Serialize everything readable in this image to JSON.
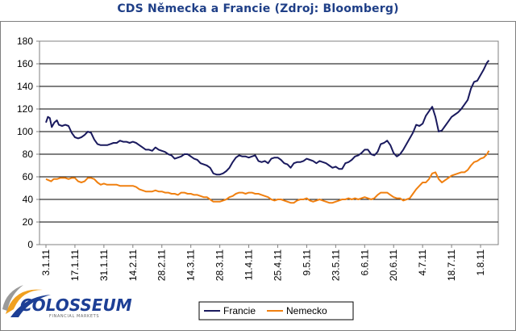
{
  "chart_data": {
    "type": "line",
    "title": "CDS Německa a Francie (Zdroj: Bloomberg)",
    "xlabel": "",
    "ylabel": "",
    "ylim": [
      0,
      180
    ],
    "yticks": [
      0,
      20,
      40,
      60,
      80,
      100,
      120,
      140,
      160,
      180
    ],
    "xtick_labels": [
      "3.1.11",
      "17.1.11",
      "31.1.11",
      "14.2.11",
      "28.2.11",
      "14.3.11",
      "28.3.11",
      "11.4.11",
      "25.4.11",
      "9.5.11",
      "23.5.11",
      "6.6.11",
      "20.6.11",
      "4.7.11",
      "18.7.11",
      "1.8.11"
    ],
    "grid": "horizontal",
    "legend_position": "bottom",
    "series": [
      {
        "name": "Francie",
        "color": "#1a1a5e",
        "points": [
          [
            0,
            108
          ],
          [
            0.3,
            113
          ],
          [
            0.6,
            112
          ],
          [
            0.9,
            104
          ],
          [
            1.3,
            108
          ],
          [
            1.7,
            110
          ],
          [
            2.0,
            106
          ],
          [
            2.5,
            105
          ],
          [
            3.0,
            106
          ],
          [
            3.5,
            105
          ],
          [
            4.0,
            99
          ],
          [
            4.5,
            95
          ],
          [
            5.0,
            94
          ],
          [
            5.5,
            95
          ],
          [
            6.0,
            97
          ],
          [
            6.5,
            100
          ],
          [
            7.0,
            99
          ],
          [
            7.5,
            93
          ],
          [
            8.0,
            89
          ],
          [
            8.5,
            88
          ],
          [
            9.0,
            88
          ],
          [
            9.5,
            88
          ],
          [
            10.0,
            89
          ],
          [
            10.5,
            90
          ],
          [
            11.0,
            90
          ],
          [
            11.5,
            92
          ],
          [
            12.0,
            91
          ],
          [
            12.5,
            91
          ],
          [
            13.0,
            90
          ],
          [
            13.5,
            91
          ],
          [
            14.0,
            90
          ],
          [
            14.5,
            88
          ],
          [
            15.0,
            86
          ],
          [
            15.5,
            84
          ],
          [
            16.0,
            84
          ],
          [
            16.5,
            83
          ],
          [
            17.0,
            86
          ],
          [
            17.5,
            84
          ],
          [
            18.0,
            83
          ],
          [
            18.5,
            82
          ],
          [
            19.0,
            80
          ],
          [
            19.5,
            79
          ],
          [
            20.0,
            76
          ],
          [
            20.5,
            77
          ],
          [
            21.0,
            78
          ],
          [
            21.5,
            80
          ],
          [
            22.0,
            80
          ],
          [
            22.5,
            78
          ],
          [
            23.0,
            76
          ],
          [
            23.5,
            75
          ],
          [
            24.0,
            72
          ],
          [
            24.5,
            71
          ],
          [
            25.0,
            70
          ],
          [
            25.5,
            68
          ],
          [
            26.0,
            63
          ],
          [
            26.5,
            62
          ],
          [
            27.0,
            62
          ],
          [
            27.5,
            63
          ],
          [
            28.0,
            65
          ],
          [
            28.5,
            68
          ],
          [
            29.0,
            73
          ],
          [
            29.5,
            77
          ],
          [
            30.0,
            79
          ],
          [
            30.5,
            78
          ],
          [
            31.0,
            78
          ],
          [
            31.5,
            77
          ],
          [
            32.0,
            78
          ],
          [
            32.5,
            79
          ],
          [
            33.0,
            74
          ],
          [
            33.5,
            73
          ],
          [
            34.0,
            74
          ],
          [
            34.5,
            72
          ],
          [
            35.0,
            76
          ],
          [
            35.5,
            77
          ],
          [
            36.0,
            77
          ],
          [
            36.5,
            75
          ],
          [
            37.0,
            72
          ],
          [
            37.5,
            71
          ],
          [
            38.0,
            68
          ],
          [
            38.5,
            72
          ],
          [
            39.0,
            73
          ],
          [
            39.5,
            73
          ],
          [
            40.0,
            74
          ],
          [
            40.5,
            76
          ],
          [
            41.0,
            75
          ],
          [
            41.5,
            74
          ],
          [
            42.0,
            72
          ],
          [
            42.5,
            74
          ],
          [
            43.0,
            73
          ],
          [
            43.5,
            72
          ],
          [
            44.0,
            70
          ],
          [
            44.5,
            68
          ],
          [
            45.0,
            69
          ],
          [
            45.5,
            67
          ],
          [
            46.0,
            67
          ],
          [
            46.5,
            72
          ],
          [
            47.0,
            73
          ],
          [
            47.5,
            75
          ],
          [
            48.0,
            78
          ],
          [
            48.5,
            79
          ],
          [
            49.0,
            81
          ],
          [
            49.5,
            84
          ],
          [
            50.0,
            84
          ],
          [
            50.5,
            80
          ],
          [
            51.0,
            79
          ],
          [
            51.5,
            82
          ],
          [
            52.0,
            89
          ],
          [
            52.5,
            90
          ],
          [
            53.0,
            92
          ],
          [
            53.5,
            88
          ],
          [
            54.0,
            81
          ],
          [
            54.5,
            78
          ],
          [
            55.0,
            80
          ],
          [
            55.5,
            84
          ],
          [
            56.0,
            89
          ],
          [
            56.5,
            94
          ],
          [
            57.0,
            99
          ],
          [
            57.5,
            106
          ],
          [
            58.0,
            105
          ],
          [
            58.5,
            107
          ],
          [
            59.0,
            114
          ],
          [
            59.5,
            118
          ],
          [
            60.0,
            122
          ],
          [
            60.5,
            113
          ],
          [
            61.0,
            100
          ],
          [
            61.5,
            101
          ],
          [
            62.0,
            105
          ],
          [
            62.5,
            109
          ],
          [
            63.0,
            113
          ],
          [
            63.5,
            115
          ],
          [
            64.0,
            117
          ],
          [
            64.5,
            120
          ],
          [
            65.0,
            124
          ],
          [
            65.5,
            128
          ],
          [
            66.0,
            138
          ],
          [
            66.5,
            144
          ],
          [
            67.0,
            145
          ],
          [
            67.5,
            150
          ],
          [
            68.0,
            155
          ],
          [
            68.5,
            161
          ],
          [
            68.8,
            163
          ]
        ]
      },
      {
        "name": "Nemecko",
        "color": "#f08010",
        "points": [
          [
            0,
            58
          ],
          [
            0.4,
            57
          ],
          [
            0.8,
            56
          ],
          [
            1.2,
            58
          ],
          [
            1.7,
            58
          ],
          [
            2.2,
            59
          ],
          [
            3.0,
            59
          ],
          [
            3.5,
            58
          ],
          [
            4.0,
            59
          ],
          [
            4.5,
            59
          ],
          [
            5.0,
            56
          ],
          [
            5.5,
            55
          ],
          [
            6.0,
            56
          ],
          [
            6.5,
            59
          ],
          [
            7.0,
            59
          ],
          [
            7.5,
            58
          ],
          [
            8.0,
            55
          ],
          [
            8.5,
            53
          ],
          [
            9.0,
            54
          ],
          [
            9.5,
            53
          ],
          [
            10.0,
            53
          ],
          [
            10.5,
            53
          ],
          [
            11.0,
            53
          ],
          [
            11.5,
            52
          ],
          [
            12.0,
            52
          ],
          [
            12.5,
            52
          ],
          [
            13.0,
            52
          ],
          [
            13.5,
            52
          ],
          [
            14.0,
            51
          ],
          [
            14.5,
            49
          ],
          [
            15.0,
            48
          ],
          [
            15.5,
            47
          ],
          [
            16.0,
            47
          ],
          [
            16.5,
            47
          ],
          [
            17.0,
            48
          ],
          [
            17.5,
            47
          ],
          [
            18.0,
            47
          ],
          [
            18.5,
            46
          ],
          [
            19.0,
            46
          ],
          [
            19.5,
            45
          ],
          [
            20.0,
            45
          ],
          [
            20.5,
            44
          ],
          [
            21.0,
            46
          ],
          [
            21.5,
            46
          ],
          [
            22.0,
            45
          ],
          [
            22.5,
            45
          ],
          [
            23.0,
            44
          ],
          [
            23.5,
            44
          ],
          [
            24.0,
            43
          ],
          [
            24.5,
            42
          ],
          [
            25.0,
            42
          ],
          [
            25.5,
            40
          ],
          [
            26.0,
            38
          ],
          [
            26.5,
            38
          ],
          [
            27.0,
            38
          ],
          [
            27.5,
            39
          ],
          [
            28.0,
            40
          ],
          [
            28.5,
            42
          ],
          [
            29.0,
            43
          ],
          [
            29.5,
            45
          ],
          [
            30.0,
            46
          ],
          [
            30.5,
            46
          ],
          [
            31.0,
            45
          ],
          [
            31.5,
            46
          ],
          [
            32.0,
            46
          ],
          [
            32.5,
            45
          ],
          [
            33.0,
            45
          ],
          [
            33.5,
            44
          ],
          [
            34.0,
            43
          ],
          [
            34.5,
            42
          ],
          [
            35.0,
            40
          ],
          [
            35.5,
            39
          ],
          [
            36.0,
            40
          ],
          [
            36.5,
            40
          ],
          [
            37.0,
            39
          ],
          [
            37.5,
            38
          ],
          [
            38.0,
            37
          ],
          [
            38.5,
            37
          ],
          [
            39.0,
            39
          ],
          [
            39.5,
            40
          ],
          [
            40.0,
            40
          ],
          [
            40.5,
            41
          ],
          [
            41.0,
            39
          ],
          [
            41.5,
            38
          ],
          [
            42.0,
            39
          ],
          [
            42.5,
            40
          ],
          [
            43.0,
            39
          ],
          [
            43.5,
            38
          ],
          [
            44.0,
            37
          ],
          [
            44.5,
            37
          ],
          [
            45.0,
            38
          ],
          [
            45.5,
            39
          ],
          [
            46.0,
            40
          ],
          [
            46.5,
            40
          ],
          [
            47.0,
            41
          ],
          [
            47.5,
            40
          ],
          [
            48.0,
            41
          ],
          [
            48.5,
            40
          ],
          [
            49.0,
            41
          ],
          [
            49.5,
            42
          ],
          [
            50.0,
            41
          ],
          [
            50.5,
            40
          ],
          [
            51.0,
            41
          ],
          [
            51.5,
            44
          ],
          [
            52.0,
            46
          ],
          [
            52.5,
            46
          ],
          [
            53.0,
            46
          ],
          [
            53.5,
            44
          ],
          [
            54.0,
            42
          ],
          [
            54.5,
            41
          ],
          [
            55.0,
            41
          ],
          [
            55.5,
            39
          ],
          [
            56.0,
            40
          ],
          [
            56.5,
            41
          ],
          [
            57.0,
            45
          ],
          [
            57.5,
            49
          ],
          [
            58.0,
            52
          ],
          [
            58.5,
            55
          ],
          [
            59.0,
            55
          ],
          [
            59.5,
            58
          ],
          [
            60.0,
            63
          ],
          [
            60.5,
            64
          ],
          [
            61.0,
            58
          ],
          [
            61.5,
            55
          ],
          [
            62.0,
            57
          ],
          [
            62.5,
            59
          ],
          [
            63.0,
            61
          ],
          [
            63.5,
            62
          ],
          [
            64.0,
            63
          ],
          [
            64.5,
            64
          ],
          [
            65.0,
            64
          ],
          [
            65.5,
            66
          ],
          [
            66.0,
            70
          ],
          [
            66.5,
            73
          ],
          [
            67.0,
            74
          ],
          [
            67.5,
            76
          ],
          [
            68.0,
            77
          ],
          [
            68.5,
            80
          ],
          [
            68.8,
            83
          ]
        ]
      }
    ]
  },
  "logo": {
    "name": "COLOSSEUM",
    "tagline": "FINANCIAL MARKETS",
    "colors": [
      "#1d3f95",
      "#f0a020",
      "#9a9a9a"
    ]
  }
}
